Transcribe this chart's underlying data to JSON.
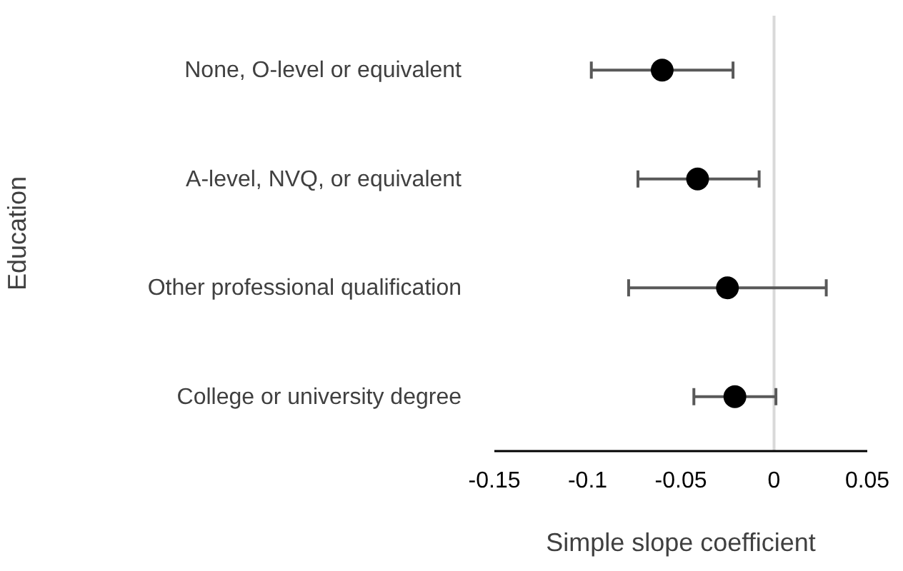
{
  "chart_data": {
    "type": "scatter",
    "orientation": "horizontal",
    "xlabel": "Simple slope coefficient",
    "ylabel": "Education",
    "categories": [
      "None, O-level or equivalent",
      "A-level, NVQ, or equivalent",
      "Other professional qualification",
      "College or university degree"
    ],
    "series": [
      {
        "color": "#000000",
        "values": [
          -0.06,
          -0.041,
          -0.025,
          -0.021
        ],
        "errors": [
          [
            -0.098,
            -0.022
          ],
          [
            -0.073,
            -0.008
          ],
          [
            -0.078,
            0.028
          ],
          [
            -0.043,
            0.001
          ]
        ]
      }
    ],
    "xlim": [
      -0.15,
      0.05
    ],
    "xticks": [
      -0.15,
      -0.1,
      -0.05,
      0,
      0.05
    ],
    "marker": "circle",
    "ref_lines": [
      {
        "axis": "x",
        "value": 0,
        "color": "#d9d9d9"
      }
    ]
  }
}
